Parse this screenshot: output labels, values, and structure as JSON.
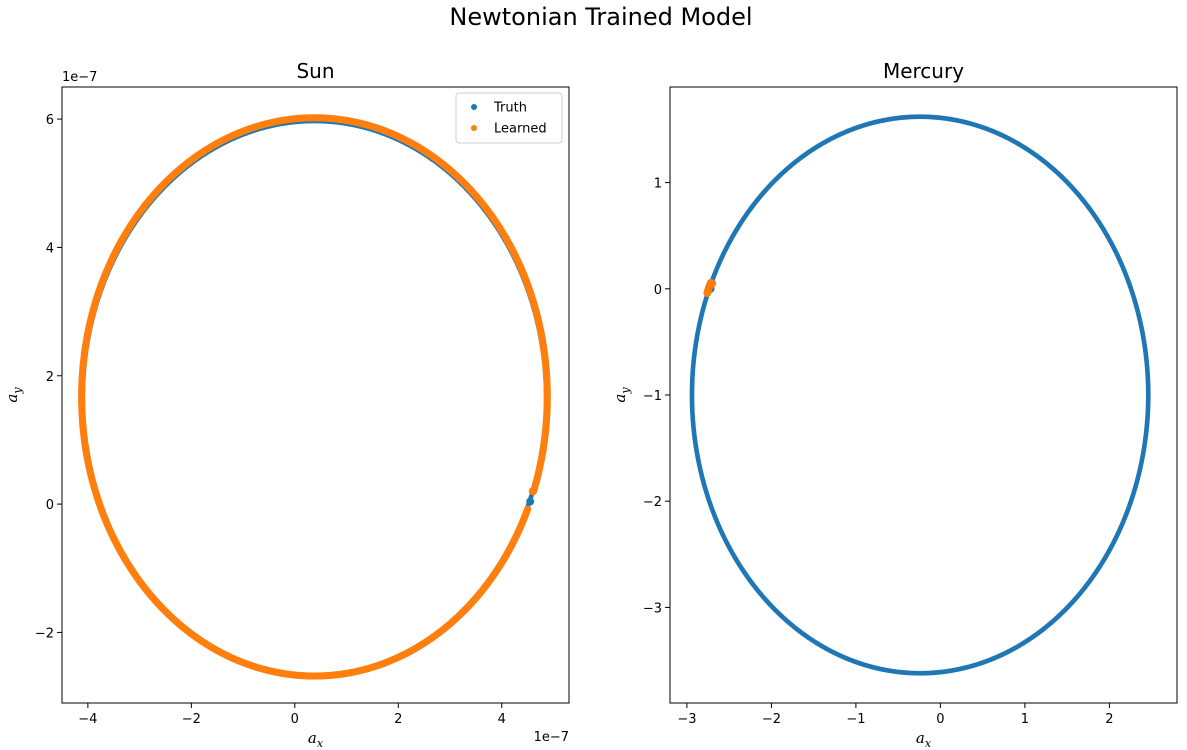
{
  "figure": {
    "suptitle": "Newtonian Trained Model"
  },
  "colors": {
    "truth": "#1f77b4",
    "learned": "#ff7f0e",
    "axes": "#000000"
  },
  "chart_data": [
    {
      "type": "scatter",
      "title": "Sun",
      "xlabel": "a",
      "xlabel_sub": "x",
      "ylabel": "a",
      "ylabel_sub": "y",
      "x_offset_text": "1e−7",
      "y_offset_text": "1e−7",
      "xlim": [
        -4.5,
        5.3
      ],
      "ylim": [
        -3.1,
        6.5
      ],
      "xticks": [
        -4,
        -2,
        0,
        2,
        4
      ],
      "xtick_labels": [
        "−4",
        "−2",
        "0",
        "2",
        "4"
      ],
      "yticks": [
        -2,
        0,
        2,
        4,
        6
      ],
      "ytick_labels": [
        "−2",
        "0",
        "2",
        "4",
        "6"
      ],
      "legend": {
        "placement": "top-right",
        "entries": [
          "Truth",
          "Learned"
        ]
      },
      "series": [
        {
          "name": "Truth",
          "shape": "ellipse",
          "center": [
            0.38,
            1.65
          ],
          "semi_axes": [
            4.48,
            4.32
          ],
          "start_point": [
            4.55,
            0.04
          ],
          "sweep": "full"
        },
        {
          "name": "Learned",
          "shape": "ellipse",
          "center": [
            0.38,
            1.67
          ],
          "semi_axes": [
            4.5,
            4.35
          ],
          "start_point": [
            4.6,
            0.2
          ],
          "end_point": [
            4.55,
            -0.1
          ],
          "sweep": "full"
        }
      ]
    },
    {
      "type": "scatter",
      "title": "Mercury",
      "xlabel": "a",
      "xlabel_sub": "x",
      "ylabel": "a",
      "ylabel_sub": "y",
      "xlim": [
        -3.2,
        2.8
      ],
      "ylim": [
        -3.9,
        1.9
      ],
      "xticks": [
        -3,
        -2,
        -1,
        0,
        1,
        2
      ],
      "xtick_labels": [
        "−3",
        "−2",
        "−1",
        "0",
        "1",
        "2"
      ],
      "yticks": [
        -3,
        -2,
        -1,
        0,
        1
      ],
      "ytick_labels": [
        "−3",
        "−2",
        "−1",
        "0",
        "1"
      ],
      "series": [
        {
          "name": "Truth",
          "shape": "ellipse",
          "center": [
            -0.24,
            -1.0
          ],
          "semi_axes": [
            2.7,
            2.62
          ],
          "start_point": [
            -2.72,
            0.0
          ],
          "sweep": "full"
        },
        {
          "name": "Learned",
          "shape": "ellipse",
          "center": [
            -0.24,
            -1.01
          ],
          "semi_axes": [
            2.71,
            2.63
          ],
          "start_point": [
            -2.7,
            0.05
          ],
          "end_point": [
            -2.74,
            -0.05
          ],
          "sweep": "full"
        }
      ]
    }
  ]
}
